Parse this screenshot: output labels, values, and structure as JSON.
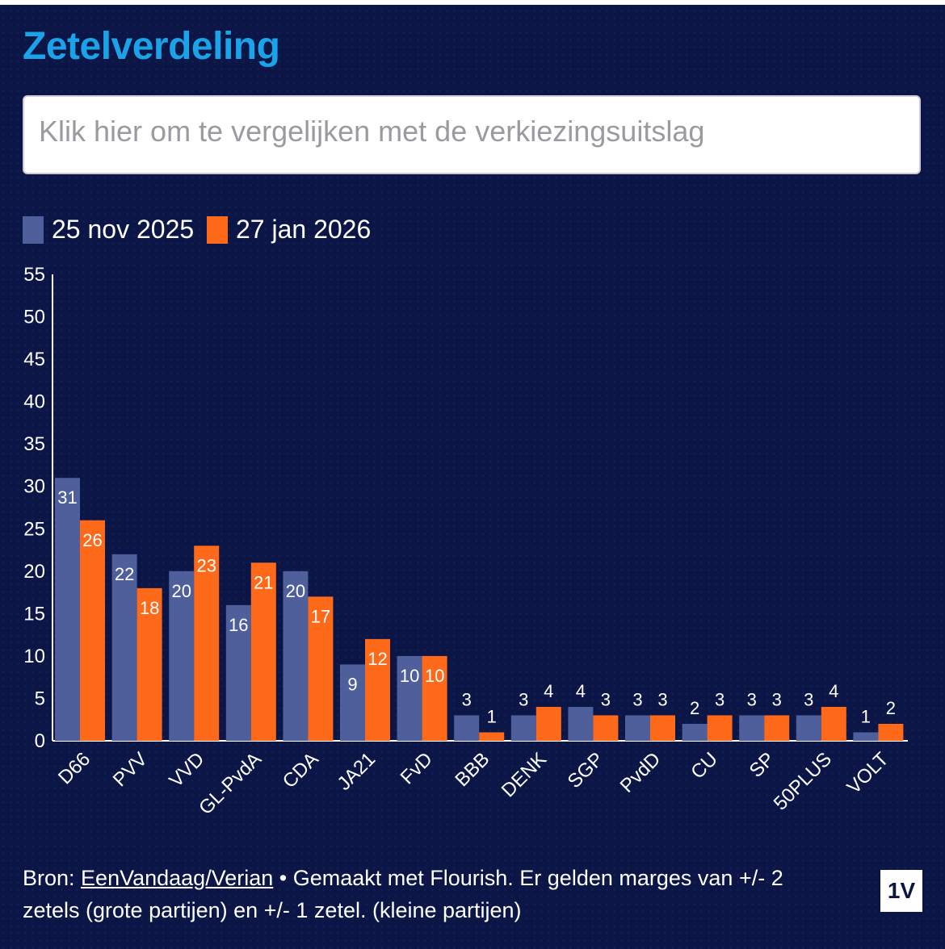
{
  "title": "Zetelverdeling",
  "compare_button": "Klik hier om te vergelijken met de verkiezingsuitslag",
  "legend": [
    {
      "label": "25 nov 2025",
      "color": "#4e5f9c"
    },
    {
      "label": "27 jan 2026",
      "color": "#ff6a1a"
    }
  ],
  "chart_data": {
    "type": "bar",
    "categories": [
      "D66",
      "PVV",
      "VVD",
      "GL-PvdA",
      "CDA",
      "JA21",
      "FvD",
      "BBB",
      "DENK",
      "SGP",
      "PvdD",
      "CU",
      "SP",
      "50PLUS",
      "VOLT"
    ],
    "series": [
      {
        "name": "25 nov 2025",
        "color": "#4e5f9c",
        "values": [
          31,
          22,
          20,
          16,
          20,
          9,
          10,
          3,
          3,
          4,
          3,
          2,
          3,
          3,
          1
        ]
      },
      {
        "name": "27 jan 2026",
        "color": "#ff6a1a",
        "values": [
          26,
          18,
          23,
          21,
          17,
          12,
          10,
          1,
          4,
          3,
          3,
          3,
          3,
          4,
          2
        ]
      }
    ],
    "yticks": [
      0,
      5,
      10,
      15,
      20,
      25,
      30,
      35,
      40,
      45,
      50,
      55
    ],
    "ylim": [
      0,
      55
    ],
    "grid": false,
    "legend_position": "top-left"
  },
  "footer": {
    "prefix": "Bron: ",
    "source_link": "EenVandaag/Verian",
    "text": " • Gemaakt met Flourish. Er gelden marges van +/- 2 zetels (grote partijen) en +/- 1 zetel. (kleine partijen)"
  },
  "logo_text": "1V"
}
